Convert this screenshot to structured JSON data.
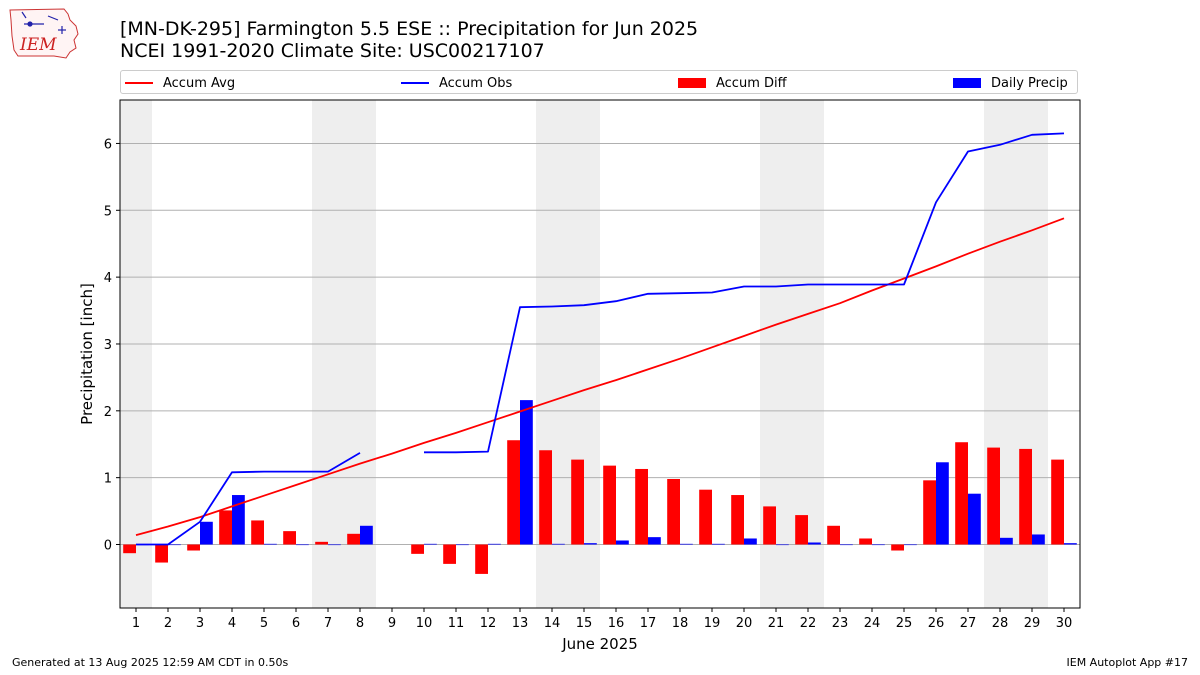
{
  "header": {
    "logo_text": "IEM",
    "title_line1": "[MN-DK-295] Farmington 5.5 ESE :: Precipitation for Jun 2025",
    "title_line2": "NCEI 1991-2020 Climate Site: USC00217107"
  },
  "legend": {
    "accum_avg": "Accum Avg",
    "accum_obs": "Accum Obs",
    "accum_diff": "Accum Diff",
    "daily_precip": "Daily Precip"
  },
  "footer": {
    "generated": "Generated at 13 Aug 2025 12:59 AM CDT in 0.50s",
    "app": "IEM Autoplot App #17"
  },
  "colors": {
    "accum_avg": "#ff0000",
    "accum_obs": "#0000ff",
    "accum_diff": "#ff0000",
    "daily_precip": "#0000ff",
    "weekend_shade": "#eeeeee",
    "grid": "#b0b0b0"
  },
  "chart_data": {
    "type": "bar",
    "xlabel": "June 2025",
    "ylabel": "Precipitation [inch]",
    "xlim": [
      0.5,
      30.5
    ],
    "ylim": [
      -0.95,
      6.65
    ],
    "yticks": [
      0,
      1,
      2,
      3,
      4,
      5,
      6
    ],
    "grid": "horizontal",
    "legend_position": "top",
    "weekend_shaded_days": [
      1,
      7,
      8,
      14,
      15,
      21,
      22,
      28,
      29
    ],
    "days": [
      1,
      2,
      3,
      4,
      5,
      6,
      7,
      8,
      9,
      10,
      11,
      12,
      13,
      14,
      15,
      16,
      17,
      18,
      19,
      20,
      21,
      22,
      23,
      24,
      25,
      26,
      27,
      28,
      29,
      30
    ],
    "series": [
      {
        "name": "Accum Avg",
        "kind": "line",
        "values": [
          0.14,
          0.27,
          0.41,
          0.57,
          0.73,
          0.89,
          1.05,
          1.21,
          1.36,
          1.52,
          1.67,
          1.83,
          1.99,
          2.15,
          2.31,
          2.46,
          2.62,
          2.78,
          2.95,
          3.12,
          3.29,
          3.45,
          3.61,
          3.8,
          3.98,
          4.16,
          4.35,
          4.53,
          4.7,
          4.88
        ]
      },
      {
        "name": "Accum Obs",
        "kind": "line",
        "values": [
          0.0,
          0.0,
          0.34,
          1.08,
          1.09,
          1.09,
          1.09,
          1.37,
          null,
          1.38,
          1.38,
          1.39,
          3.55,
          3.56,
          3.58,
          3.64,
          3.75,
          3.76,
          3.77,
          3.86,
          3.86,
          3.89,
          3.89,
          3.89,
          3.89,
          5.12,
          5.88,
          5.98,
          6.13,
          6.15
        ]
      },
      {
        "name": "Accum Diff",
        "kind": "bar",
        "values": [
          -0.13,
          -0.27,
          -0.09,
          0.51,
          0.36,
          0.2,
          0.04,
          0.16,
          null,
          -0.14,
          -0.29,
          -0.44,
          1.56,
          1.41,
          1.27,
          1.18,
          1.13,
          0.98,
          0.82,
          0.74,
          0.57,
          0.44,
          0.28,
          0.09,
          -0.09,
          0.96,
          1.53,
          1.45,
          1.43,
          1.27
        ]
      },
      {
        "name": "Daily Precip",
        "kind": "bar",
        "values": [
          0.0,
          0.0,
          0.34,
          0.74,
          0.01,
          0.0,
          0.0,
          0.28,
          null,
          0.01,
          0.0,
          0.01,
          2.16,
          0.01,
          0.02,
          0.06,
          0.11,
          0.01,
          0.01,
          0.09,
          0.0,
          0.03,
          0.0,
          0.0,
          0.0,
          1.23,
          0.76,
          0.1,
          0.15,
          0.02
        ]
      }
    ]
  }
}
